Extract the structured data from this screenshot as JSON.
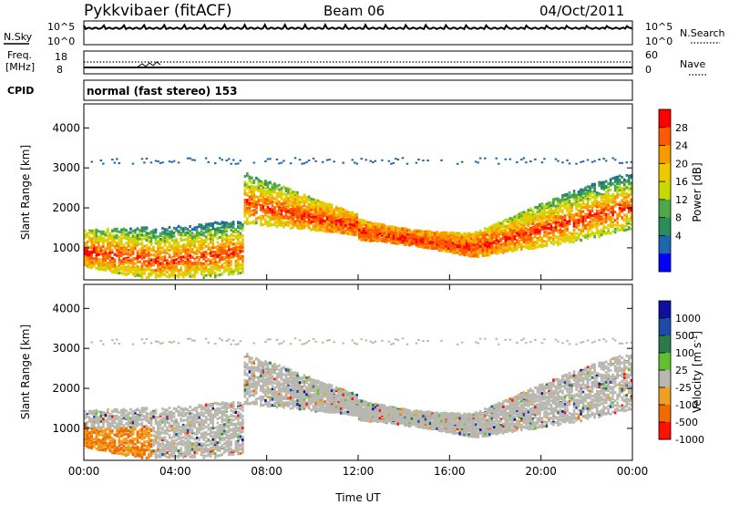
{
  "header": {
    "station": "Pykkvibaer (fitACF)",
    "beam": "Beam 06",
    "date": "04/Oct/2011"
  },
  "noise_panel": {
    "left_label": "N.Sky",
    "right_label": "N.Search",
    "left_ticks": [
      "10^5",
      "10^0"
    ],
    "right_ticks": [
      "10^5",
      "10^0"
    ]
  },
  "freq_panel": {
    "left_label_1": "Freq.",
    "left_label_2": "[MHz]",
    "right_label": "Nave",
    "left_ticks": [
      "18",
      "8"
    ],
    "right_ticks": [
      "60",
      "0"
    ]
  },
  "cpid": {
    "label": "CPID",
    "text": "normal (fast stereo) 153"
  },
  "time_axis": {
    "label": "Time UT",
    "ticks": [
      "00:00",
      "04:00",
      "08:00",
      "12:00",
      "16:00",
      "20:00",
      "00:00"
    ]
  },
  "chart_data": [
    {
      "type": "heatmap",
      "panel": "power",
      "ylabel": "Slant Range [km]",
      "x_range_hours": [
        0,
        24
      ],
      "ylim": [
        200,
        4600
      ],
      "yticks": [
        "1000",
        "2000",
        "3000",
        "4000"
      ],
      "colorbar": {
        "label": "Power [dB]",
        "ticks": [
          "28",
          "24",
          "20",
          "16",
          "12",
          "8",
          "4"
        ],
        "colors": [
          "#ff0000",
          "#ff5a00",
          "#f89a00",
          "#f0c800",
          "#c8d800",
          "#4ea84a",
          "#2a8e5c",
          "#1e66b0",
          "#0000ff"
        ]
      }
    },
    {
      "type": "heatmap",
      "panel": "velocity",
      "ylabel": "Slant Range [km]",
      "x_range_hours": [
        0,
        24
      ],
      "ylim": [
        200,
        4600
      ],
      "yticks": [
        "1000",
        "2000",
        "3000",
        "4000"
      ],
      "colorbar": {
        "label": "Velocity [m s",
        "label_sup": "-1",
        "label_end": "]",
        "ticks": [
          "1000",
          "500",
          "100",
          "25",
          "-25",
          "-100",
          "-500",
          "-1000"
        ],
        "colors": [
          "#1010a0",
          "#1e4aa8",
          "#2a7a4a",
          "#60c030",
          "#b8b8b0",
          "#f0a020",
          "#f06a00",
          "#ff1000"
        ]
      }
    }
  ]
}
